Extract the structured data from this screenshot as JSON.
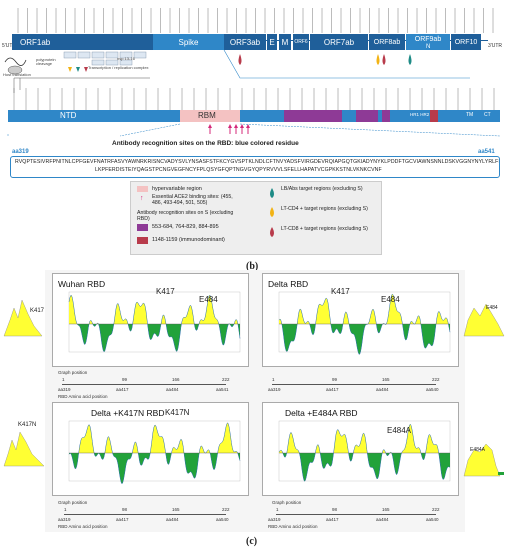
{
  "top": {
    "utr5": "5'UTR",
    "utr3": "3'UTR",
    "genes": [
      "ORF1ab",
      "Spike",
      "ORF3ab",
      "E",
      "M",
      "ORF6",
      "ORF7ab",
      "ORF8ab",
      "N",
      "ORF9ab",
      "ORF10"
    ],
    "host_translation": "Host translation",
    "polyprotein_cleavage": "polyprotein cleavage",
    "nsp": "nsp 13-16",
    "transcription": "Transcription / replication complex"
  },
  "spike": {
    "ntd": "NTD",
    "rbm": "RBM",
    "hr": "HR1 HR2",
    "tm": "TM",
    "ct": "CT",
    "title": "Antibody recognition sites on the RBD: blue colored residue",
    "aa319": "aa319",
    "aa541": "aa541",
    "seq1": "RVQPTESIVRFPNITNLCPFGEVFNATRFASVYAWNRKRISNCVADYSVLYNSASFSTFKCYGVSPTKLNDLCFTNVYADSFVIRGDEVRQIAPGQTGKIADYNYKLPDDFTGCVIAWNSNNLDSKVGGNYNYLYRLFRKSN",
    "seq2": "LKPFERDISTEIYQAGSTPCNGVEGFNCYFPLQSYGFQPTNGVGYQPYRVVVLSFELLHAPATVCGPKKSTNLVKNKCVNF"
  },
  "legend": {
    "hypervariable": "hypervariable region",
    "ace2": "Essential ACE2 binding sites: (455, 486, 493-494, 501, 505)",
    "ab_title": "Antibody recognition sites on S (excluding RBD)",
    "ab1": "553-684, 764-829, 884-895",
    "ab2": "1148-1159 (immunodominant)",
    "lb": "LB/Abs target regions (excluding S)",
    "cd4": "LT-CD4 + target regions (excluding S)",
    "cd8": "LT-CD8 + target regions (excluding S)"
  },
  "label_b": "(b)",
  "label_c": "(c)",
  "panels": [
    {
      "title": "Wuhan RBD",
      "mut1": "K417",
      "mut2": "E484",
      "ticks": [
        "1",
        "99",
        "166",
        "222"
      ],
      "aa": [
        "aa319",
        "aa417",
        "aa484",
        "aa541"
      ]
    },
    {
      "title": "Delta RBD",
      "mut1": "K417",
      "mut2": "E484",
      "ticks": [
        "1",
        "99",
        "165",
        "222"
      ],
      "aa": [
        "aa319",
        "aa417",
        "aa484",
        "aa540"
      ]
    },
    {
      "title": "Delta +K417N RBD",
      "mut1": "K417N",
      "mut2": "",
      "ticks": [
        "1",
        "98",
        "165",
        "222"
      ],
      "aa": [
        "aa319",
        "aa417",
        "aa484",
        "aa540"
      ]
    },
    {
      "title": "Delta +E484A RBD",
      "mut1": "",
      "mut2": "E484A",
      "ticks": [
        "1",
        "98",
        "165",
        "222"
      ],
      "aa": [
        "aa319",
        "aa417",
        "aa484",
        "aa540"
      ]
    }
  ],
  "graph_position": "Graph position",
  "rbd_position": "RBD Amino acid position",
  "side_labels": {
    "left_top": "K417",
    "right_top": "E484",
    "left_bottom": "K417N",
    "right_bottom": "E484A"
  },
  "colors": {
    "gene": "#1f5f9a",
    "spike": "#2f87c8",
    "rbm": "#f4c2c2",
    "magenta": "#8e3a96",
    "darkred": "#b83b4b",
    "teal": "#1e8b86",
    "gold": "#f2b315",
    "plot_yellow": "#ffff33",
    "plot_green": "#22a23a"
  }
}
